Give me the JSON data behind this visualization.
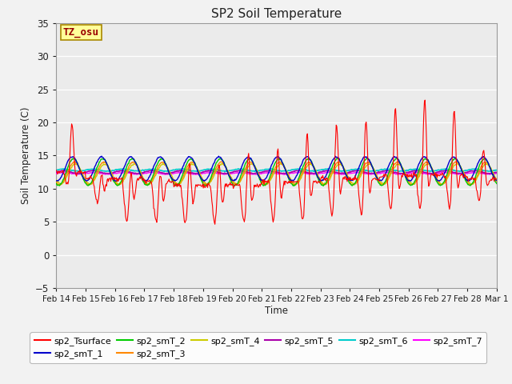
{
  "title": "SP2 Soil Temperature",
  "ylabel": "Soil Temperature (C)",
  "xlabel": "Time",
  "annotation": "TZ_osu",
  "ylim": [
    -5,
    35
  ],
  "yticks": [
    -5,
    0,
    5,
    10,
    15,
    20,
    25,
    30,
    35
  ],
  "xtick_labels": [
    "Feb 14",
    "Feb 15",
    "Feb 16",
    "Feb 17",
    "Feb 18",
    "Feb 19",
    "Feb 20",
    "Feb 21",
    "Feb 22",
    "Feb 23",
    "Feb 24",
    "Feb 25",
    "Feb 26",
    "Feb 27",
    "Feb 28",
    "Mar 1"
  ],
  "series_colors": {
    "sp2_Tsurface": "#FF0000",
    "sp2_smT_1": "#0000CC",
    "sp2_smT_2": "#00CC00",
    "sp2_smT_3": "#FF8800",
    "sp2_smT_4": "#CCCC00",
    "sp2_smT_5": "#AA00AA",
    "sp2_smT_6": "#00CCCC",
    "sp2_smT_7": "#FF00FF"
  },
  "bg_color": "#EBEBEB",
  "grid_color": "#FFFFFF",
  "annotation_bg": "#FFFF99",
  "annotation_border": "#AA8800",
  "fig_bg": "#F2F2F2"
}
